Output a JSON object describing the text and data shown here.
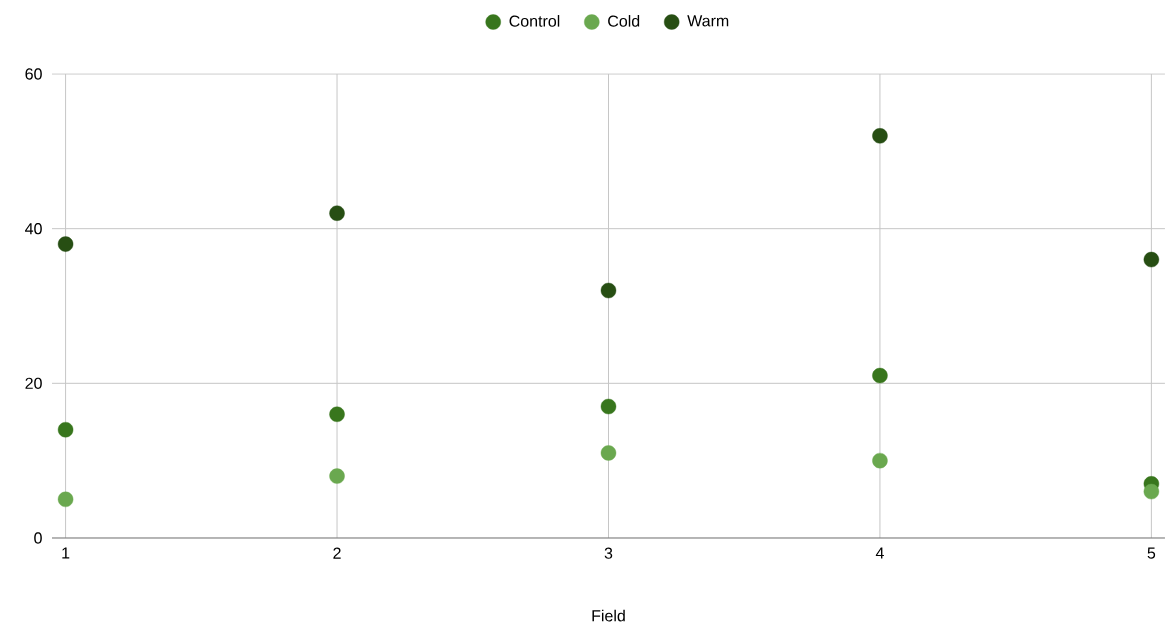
{
  "chart_data": {
    "type": "scatter",
    "xlabel": "Field",
    "x": [
      1,
      2,
      3,
      4,
      5
    ],
    "series": [
      {
        "name": "Control",
        "color": "#38761d",
        "values": [
          14,
          16,
          17,
          21,
          7
        ]
      },
      {
        "name": "Cold",
        "color": "#6aa84f",
        "values": [
          5,
          8,
          11,
          10,
          6
        ]
      },
      {
        "name": "Warm",
        "color": "#274e13",
        "values": [
          38,
          42,
          32,
          52,
          36
        ]
      }
    ],
    "xlim": [
      0.95,
      5.05
    ],
    "xticks": [
      1,
      2,
      3,
      4,
      5
    ],
    "ylim": [
      0,
      60
    ],
    "yticks": [
      0,
      20,
      40,
      60
    ],
    "grid": true,
    "legend": "top",
    "marker": "circle"
  }
}
